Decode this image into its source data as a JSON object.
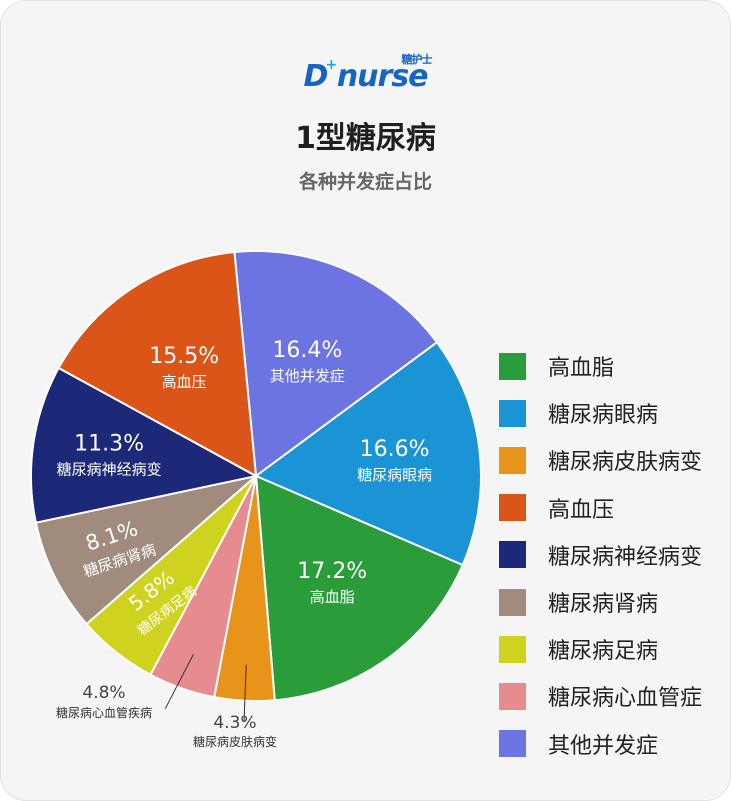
{
  "logo": {
    "main": "D nurse",
    "plus": "+",
    "chinese": "糖护士"
  },
  "title": "1型糖尿病",
  "subtitle": "各种并发症占比",
  "chart_data": {
    "type": "pie",
    "title": "1型糖尿病",
    "subtitle": "各种并发症占比",
    "slices": [
      {
        "label": "其他并发症",
        "value": 16.4,
        "display": "16.4%",
        "color": "#6b74e0"
      },
      {
        "label": "糖尿病眼病",
        "value": 16.6,
        "display": "16.6%",
        "color": "#1b94d6"
      },
      {
        "label": "高血脂",
        "value": 17.2,
        "display": "17.2%",
        "color": "#2a9d3a"
      },
      {
        "label": "糖尿病皮肤病变",
        "value": 4.3,
        "display": "4.3%",
        "color": "#e8941b"
      },
      {
        "label": "糖尿病心血管疾病",
        "value": 4.8,
        "display": "4.8%",
        "color": "#e68c8e"
      },
      {
        "label": "糖尿病足病",
        "value": 5.8,
        "display": "5.8%",
        "color": "#cfd21e"
      },
      {
        "label": "糖尿病肾病",
        "value": 8.1,
        "display": "8.1%",
        "color": "#a08b7d"
      },
      {
        "label": "糖尿病神经病变",
        "value": 11.3,
        "display": "11.3%",
        "color": "#1c2878"
      },
      {
        "label": "高血压",
        "value": 15.5,
        "display": "15.5%",
        "color": "#db5418"
      }
    ],
    "legend": [
      {
        "label": "高血脂",
        "color": "#2a9d3a"
      },
      {
        "label": "糖尿病眼病",
        "color": "#1b94d6"
      },
      {
        "label": "糖尿病皮肤病变",
        "color": "#e8941b"
      },
      {
        "label": "高血压",
        "color": "#db5418"
      },
      {
        "label": "糖尿病神经病变",
        "color": "#1c2878"
      },
      {
        "label": "糖尿病肾病",
        "color": "#a08b7d"
      },
      {
        "label": "糖尿病足病",
        "color": "#cfd21e"
      },
      {
        "label": "糖尿病心血管症",
        "color": "#e68c8e"
      },
      {
        "label": "其他并发症",
        "color": "#6b74e0"
      }
    ],
    "legend_position": "right"
  }
}
